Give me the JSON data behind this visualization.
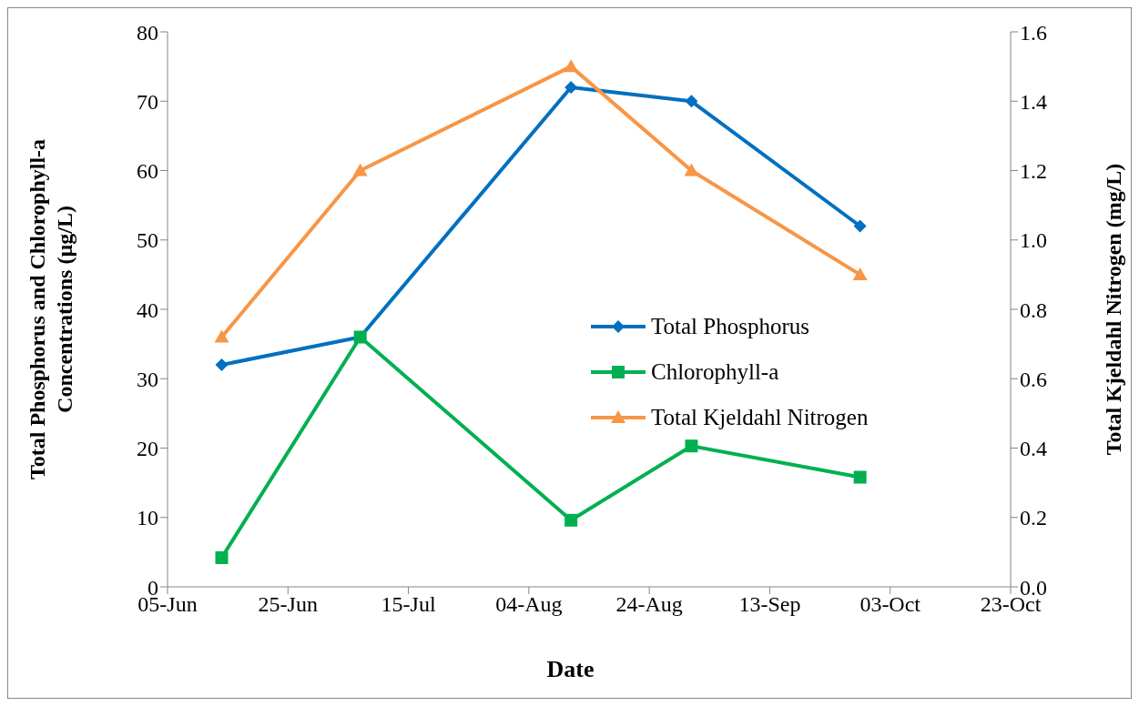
{
  "chart_data": {
    "type": "line",
    "xlabel": "Date",
    "ylabel": "Total Phosphorus and Chlorophyll-a\nConcentrations (µg/L)",
    "y2label": "Total Kjeldahl Nitrogen (mg/L)",
    "x": [
      "--06-14",
      "--07-07",
      "--08-11",
      "--08-31",
      "--09-28"
    ],
    "series": [
      {
        "name": "Total Phosphorus",
        "color": "#0070c0",
        "marker": "diamond",
        "values": [
          32,
          36,
          72,
          70,
          52
        ]
      },
      {
        "name": "Chlorophyll-a",
        "color": "#00b050",
        "marker": "square",
        "values": [
          4.2,
          36,
          9.6,
          20.3,
          15.8
        ]
      },
      {
        "name": "Total Kjeldahl Nitrogen",
        "color": "#f79646",
        "marker": "triangle",
        "axis": "y2",
        "values": [
          0.72,
          1.2,
          1.5,
          1.2,
          0.9
        ]
      }
    ],
    "xlim": [
      "--06-05",
      "--10-23"
    ],
    "xticks": [
      {
        "value": "--06-05",
        "label": "05-Jun"
      },
      {
        "value": "--06-25",
        "label": "25-Jun"
      },
      {
        "value": "--07-15",
        "label": "15-Jul"
      },
      {
        "value": "--08-04",
        "label": "04-Aug"
      },
      {
        "value": "--08-24",
        "label": "24-Aug"
      },
      {
        "value": "--09-13",
        "label": "13-Sep"
      },
      {
        "value": "--10-03",
        "label": "03-Oct"
      },
      {
        "value": "--10-23",
        "label": "23-Oct"
      }
    ],
    "ylim": [
      0,
      80
    ],
    "yticks": [
      0,
      10,
      20,
      30,
      40,
      50,
      60,
      70,
      80
    ],
    "y2lim": [
      0,
      1.6
    ],
    "y2ticks": [
      {
        "value": 0,
        "label": "0.0"
      },
      {
        "value": 0.2,
        "label": "0.2"
      },
      {
        "value": 0.4,
        "label": "0.4"
      },
      {
        "value": 0.6,
        "label": "0.6"
      },
      {
        "value": 0.8,
        "label": "0.8"
      },
      {
        "value": 1.0,
        "label": "1.0"
      },
      {
        "value": 1.2,
        "label": "1.2"
      },
      {
        "value": 1.4,
        "label": "1.4"
      },
      {
        "value": 1.6,
        "label": "1.6"
      }
    ],
    "legend": "right",
    "line_style": "solid"
  }
}
